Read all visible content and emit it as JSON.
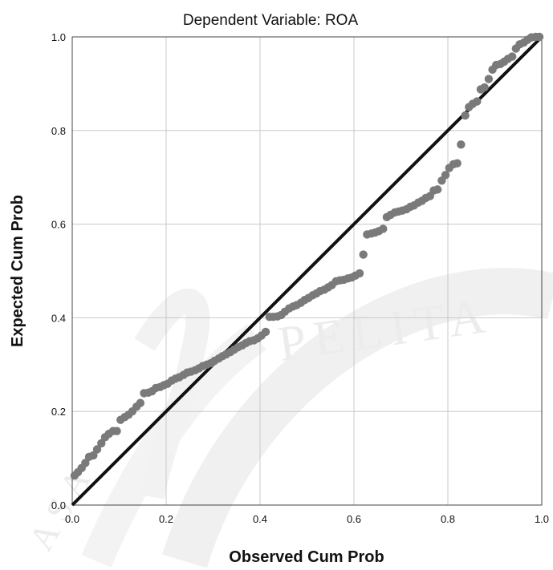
{
  "chart_data": {
    "type": "scatter",
    "title": "Dependent Variable: ROA",
    "xlabel": "Observed Cum Prob",
    "ylabel": "Expected Cum Prob",
    "xlim": [
      0,
      1
    ],
    "ylim": [
      0,
      1
    ],
    "x_ticks": [
      "0.0",
      "0.2",
      "0.4",
      "0.6",
      "0.8",
      "1.0"
    ],
    "y_ticks": [
      "0.0",
      "0.2",
      "0.4",
      "0.6",
      "0.8",
      "1.0"
    ],
    "grid": true,
    "reference_line": [
      [
        0,
        0
      ],
      [
        1,
        1
      ]
    ],
    "point_color": "#7a7a7a",
    "line_color": "#111111",
    "points": [
      [
        0.005,
        0.063
      ],
      [
        0.012,
        0.07
      ],
      [
        0.02,
        0.079
      ],
      [
        0.028,
        0.09
      ],
      [
        0.036,
        0.103
      ],
      [
        0.045,
        0.106
      ],
      [
        0.053,
        0.119
      ],
      [
        0.062,
        0.132
      ],
      [
        0.07,
        0.145
      ],
      [
        0.078,
        0.152
      ],
      [
        0.087,
        0.158
      ],
      [
        0.095,
        0.158
      ],
      [
        0.103,
        0.182
      ],
      [
        0.112,
        0.188
      ],
      [
        0.12,
        0.193
      ],
      [
        0.128,
        0.2
      ],
      [
        0.137,
        0.21
      ],
      [
        0.145,
        0.218
      ],
      [
        0.153,
        0.239
      ],
      [
        0.162,
        0.24
      ],
      [
        0.17,
        0.243
      ],
      [
        0.178,
        0.25
      ],
      [
        0.187,
        0.252
      ],
      [
        0.195,
        0.256
      ],
      [
        0.203,
        0.259
      ],
      [
        0.212,
        0.266
      ],
      [
        0.22,
        0.27
      ],
      [
        0.228,
        0.273
      ],
      [
        0.237,
        0.278
      ],
      [
        0.245,
        0.283
      ],
      [
        0.253,
        0.285
      ],
      [
        0.262,
        0.288
      ],
      [
        0.27,
        0.292
      ],
      [
        0.278,
        0.297
      ],
      [
        0.287,
        0.3
      ],
      [
        0.295,
        0.303
      ],
      [
        0.303,
        0.308
      ],
      [
        0.312,
        0.313
      ],
      [
        0.32,
        0.318
      ],
      [
        0.328,
        0.322
      ],
      [
        0.337,
        0.327
      ],
      [
        0.345,
        0.332
      ],
      [
        0.353,
        0.337
      ],
      [
        0.362,
        0.341
      ],
      [
        0.37,
        0.346
      ],
      [
        0.378,
        0.35
      ],
      [
        0.387,
        0.352
      ],
      [
        0.395,
        0.356
      ],
      [
        0.403,
        0.362
      ],
      [
        0.412,
        0.37
      ],
      [
        0.42,
        0.402
      ],
      [
        0.428,
        0.402
      ],
      [
        0.437,
        0.403
      ],
      [
        0.445,
        0.406
      ],
      [
        0.453,
        0.413
      ],
      [
        0.462,
        0.42
      ],
      [
        0.47,
        0.424
      ],
      [
        0.478,
        0.427
      ],
      [
        0.487,
        0.432
      ],
      [
        0.495,
        0.438
      ],
      [
        0.503,
        0.442
      ],
      [
        0.512,
        0.448
      ],
      [
        0.52,
        0.452
      ],
      [
        0.528,
        0.457
      ],
      [
        0.537,
        0.46
      ],
      [
        0.545,
        0.465
      ],
      [
        0.553,
        0.47
      ],
      [
        0.562,
        0.478
      ],
      [
        0.57,
        0.48
      ],
      [
        0.578,
        0.481
      ],
      [
        0.587,
        0.484
      ],
      [
        0.595,
        0.486
      ],
      [
        0.603,
        0.49
      ],
      [
        0.612,
        0.495
      ],
      [
        0.62,
        0.535
      ],
      [
        0.628,
        0.578
      ],
      [
        0.637,
        0.58
      ],
      [
        0.645,
        0.582
      ],
      [
        0.653,
        0.585
      ],
      [
        0.662,
        0.59
      ],
      [
        0.67,
        0.615
      ],
      [
        0.678,
        0.62
      ],
      [
        0.687,
        0.625
      ],
      [
        0.695,
        0.627
      ],
      [
        0.703,
        0.629
      ],
      [
        0.712,
        0.632
      ],
      [
        0.72,
        0.637
      ],
      [
        0.728,
        0.64
      ],
      [
        0.737,
        0.646
      ],
      [
        0.745,
        0.65
      ],
      [
        0.753,
        0.656
      ],
      [
        0.762,
        0.66
      ],
      [
        0.77,
        0.672
      ],
      [
        0.778,
        0.674
      ],
      [
        0.787,
        0.693
      ],
      [
        0.795,
        0.705
      ],
      [
        0.803,
        0.72
      ],
      [
        0.812,
        0.728
      ],
      [
        0.82,
        0.73
      ],
      [
        0.828,
        0.77
      ],
      [
        0.837,
        0.832
      ],
      [
        0.845,
        0.85
      ],
      [
        0.853,
        0.857
      ],
      [
        0.862,
        0.862
      ],
      [
        0.87,
        0.888
      ],
      [
        0.878,
        0.892
      ],
      [
        0.887,
        0.91
      ],
      [
        0.895,
        0.93
      ],
      [
        0.903,
        0.94
      ],
      [
        0.912,
        0.942
      ],
      [
        0.92,
        0.947
      ],
      [
        0.928,
        0.953
      ],
      [
        0.937,
        0.958
      ],
      [
        0.945,
        0.975
      ],
      [
        0.953,
        0.984
      ],
      [
        0.962,
        0.988
      ],
      [
        0.97,
        0.994
      ],
      [
        0.978,
        0.999
      ],
      [
        0.987,
        1.0
      ],
      [
        0.995,
        1.0
      ]
    ]
  }
}
